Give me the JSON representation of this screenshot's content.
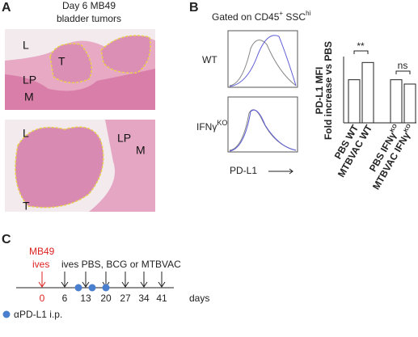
{
  "panel_a": {
    "label": "A",
    "title_lines": [
      "Day 6 MB49",
      "bladder tumors"
    ],
    "top_labels": [
      "L",
      "T",
      "LP",
      "M"
    ],
    "bottom_labels": [
      "L",
      "LP",
      "M",
      "T"
    ]
  },
  "panel_b": {
    "label": "B",
    "gate": {
      "text": "Gated on CD45",
      "sup": "+",
      "text2": " SSC",
      "sup2": "hi"
    },
    "rows": [
      {
        "text": "WT"
      },
      {
        "text": "IFNγ",
        "sup": "KO"
      }
    ],
    "x_label": "PD-L1",
    "bar_chart": {
      "type": "bar",
      "y_label_lines": [
        "PD-L1 MFI",
        "Fold increase vs PBS"
      ],
      "categories": [
        {
          "text": "PBS WT"
        },
        {
          "text": "MTBVAC WT"
        },
        {
          "text": "PBS IFNγ",
          "sup": "KO"
        },
        {
          "text": "MTBVAC IFNγ",
          "sup": "KO"
        }
      ],
      "values": [
        100,
        140,
        100,
        90
      ],
      "colors": [
        "#ffffff",
        "#ffffff",
        "#ffffff",
        "#ffffff"
      ],
      "ylim": [
        0,
        150
      ],
      "significance": [
        "**",
        "ns"
      ]
    }
  },
  "panel_c": {
    "label": "C",
    "start_lines": [
      "MB49",
      "ives"
    ],
    "treatment": "ives PBS, BCG or MTBVAC",
    "days": [
      "0",
      "6",
      "13",
      "20",
      "27",
      "34",
      "41"
    ],
    "unit": "days",
    "legend": "αPD-L1 i.p."
  }
}
